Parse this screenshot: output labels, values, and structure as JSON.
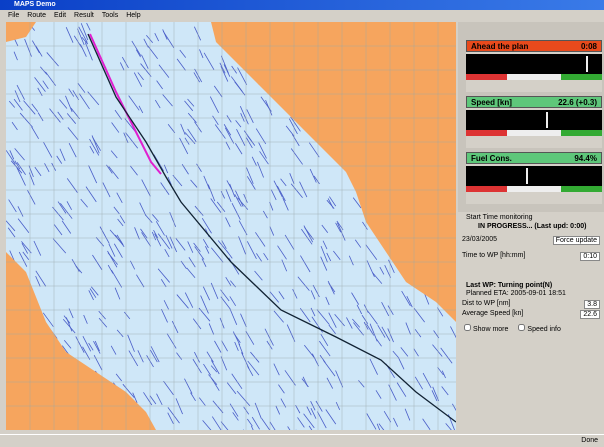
{
  "window": {
    "title": "MAPS Demo"
  },
  "menu": [
    "File",
    "Route",
    "Edit",
    "Result",
    "Tools",
    "Help"
  ],
  "gauges": [
    {
      "label": "Ahead the plan",
      "value": "0:08"
    },
    {
      "label": "Speed [kn]",
      "value": "22.6 (+0.3)"
    },
    {
      "label": "Fuel Cons.",
      "value": "94.4%"
    }
  ],
  "monitor": {
    "title": "Start Time monitoring",
    "status": "IN PROGRESS... (Last upd: 0:00)",
    "date": "23/03/2005",
    "button": "Force update",
    "rows": [
      {
        "label": "Time to WP [hh:mm]",
        "value": "0:10"
      }
    ]
  },
  "waypoint": {
    "last": "Last WP: Turning point(N)",
    "eta": "Planned ETA: 2005-09-01 18:51",
    "rows": [
      {
        "label": "Dist to WP [nm]",
        "value": "3.8"
      },
      {
        "label": "Average Speed [kn]",
        "value": "22.6"
      }
    ]
  },
  "checkboxes": [
    "Show more",
    "Speed info"
  ],
  "status": "Done"
}
